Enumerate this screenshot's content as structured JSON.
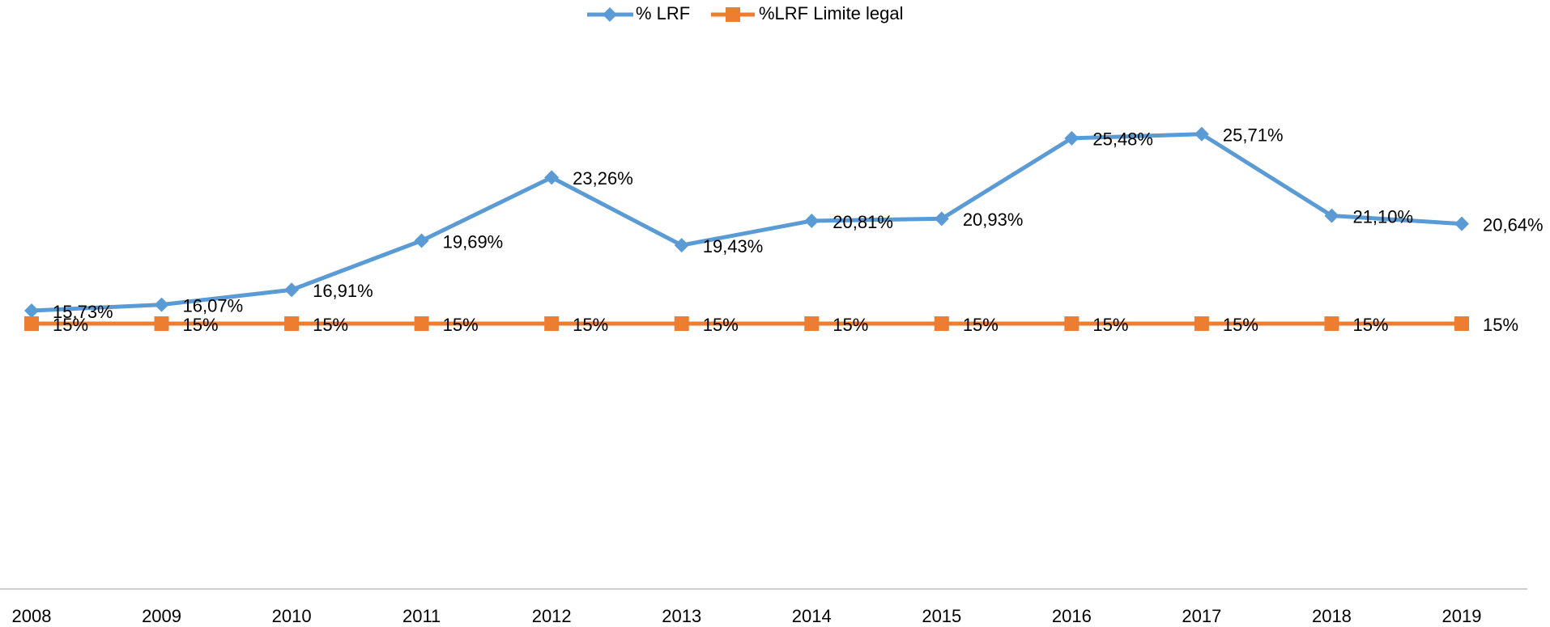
{
  "chart_data": {
    "type": "line",
    "categories": [
      "2008",
      "2009",
      "2010",
      "2011",
      "2012",
      "2013",
      "2014",
      "2015",
      "2016",
      "2017",
      "2018",
      "2019"
    ],
    "series": [
      {
        "name": "% LRF",
        "color": "#5b9bd5",
        "marker": "diamond",
        "values": [
          15.73,
          16.07,
          16.91,
          19.69,
          23.26,
          19.43,
          20.81,
          20.93,
          25.48,
          25.71,
          21.1,
          20.64
        ],
        "value_labels": [
          "15,73%",
          "16,07%",
          "16,91%",
          "19,69%",
          "23,26%",
          "19,43%",
          "20,81%",
          "20,93%",
          "25,48%",
          "25,71%",
          "21,10%",
          "20,64%"
        ]
      },
      {
        "name": "%LRF Limite legal",
        "color": "#ed7d31",
        "marker": "square",
        "values": [
          15,
          15,
          15,
          15,
          15,
          15,
          15,
          15,
          15,
          15,
          15,
          15
        ],
        "value_labels": [
          "15%",
          "15%",
          "15%",
          "15%",
          "15%",
          "15%",
          "15%",
          "15%",
          "15%",
          "15%",
          "15%",
          "15%"
        ]
      }
    ],
    "ylim": [
      0,
      30
    ],
    "legend": "top"
  }
}
